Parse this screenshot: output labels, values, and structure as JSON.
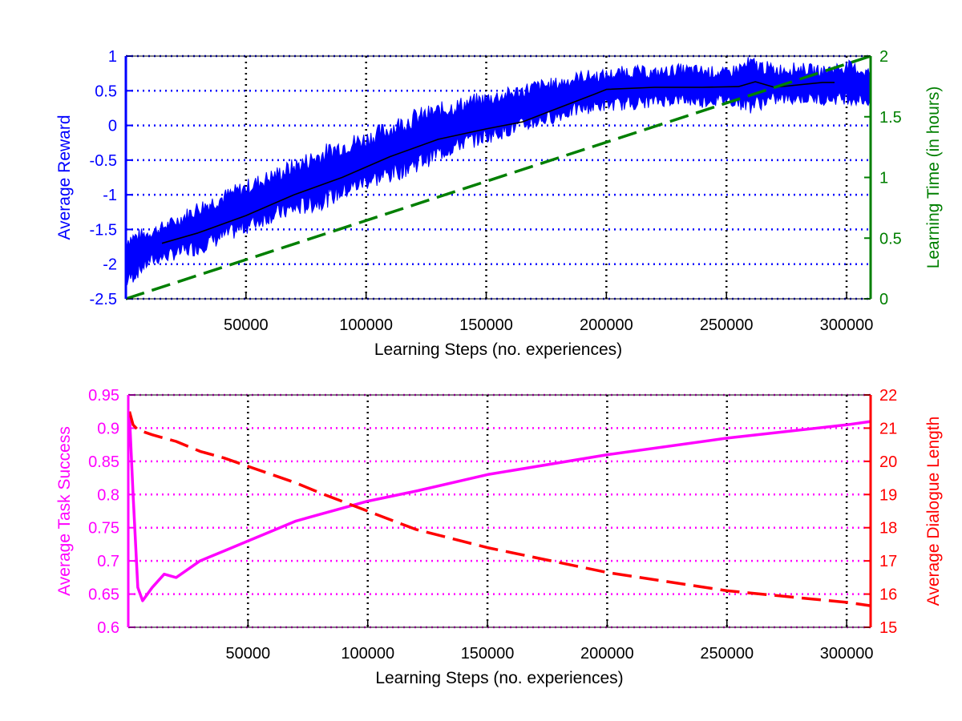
{
  "chart_data": [
    {
      "type": "line",
      "xlabel": "Learning Steps (no. experiences)",
      "ylabel_left": "Average Reward",
      "ylabel_right": "Learning Time (in hours)",
      "xlim": [
        0,
        310000
      ],
      "ylim_left": [
        -2.5,
        1
      ],
      "ylim_right": [
        0,
        2
      ],
      "x_ticks": [
        "50000",
        "100000",
        "150000",
        "200000",
        "250000",
        "300000"
      ],
      "y_ticks_left": [
        "1",
        "0.5",
        "0",
        "-0.5",
        "-1",
        "-1.5",
        "-2",
        "-2.5"
      ],
      "y_ticks_right": [
        "2",
        "1.5",
        "1",
        "0.5",
        "0"
      ],
      "grid": true,
      "colors": {
        "left_axis": "#0000ff",
        "right_axis": "#007f00",
        "mean_line": "#000000",
        "grid_x": "#000000",
        "grid_y": "#0000ff"
      },
      "series": [
        {
          "axis": "left",
          "style": "band",
          "x": [
            0,
            10000,
            20000,
            30000,
            40000,
            50000,
            60000,
            70000,
            80000,
            90000,
            100000,
            110000,
            120000,
            130000,
            140000,
            150000,
            160000,
            170000,
            180000,
            190000,
            200000,
            210000,
            220000,
            230000,
            240000,
            250000,
            260000,
            270000,
            280000,
            290000,
            300000,
            310000
          ],
          "low": [
            -2.25,
            -1.95,
            -1.85,
            -1.75,
            -1.6,
            -1.45,
            -1.3,
            -1.2,
            -1.1,
            -0.95,
            -0.8,
            -0.7,
            -0.55,
            -0.4,
            -0.25,
            -0.15,
            -0.05,
            0.05,
            0.15,
            0.25,
            0.3,
            0.32,
            0.35,
            0.38,
            0.35,
            0.38,
            0.3,
            0.38,
            0.4,
            0.38,
            0.4,
            0.35
          ],
          "high": [
            -1.65,
            -1.55,
            -1.4,
            -1.2,
            -1.05,
            -0.9,
            -0.75,
            -0.6,
            -0.45,
            -0.3,
            -0.2,
            -0.05,
            0.1,
            0.2,
            0.3,
            0.38,
            0.45,
            0.55,
            0.6,
            0.7,
            0.72,
            0.78,
            0.75,
            0.8,
            0.78,
            0.75,
            0.88,
            0.8,
            0.82,
            0.78,
            0.85,
            0.75
          ]
        },
        {
          "axis": "left",
          "style": "mean",
          "x": [
            15000,
            30000,
            50000,
            70000,
            90000,
            110000,
            130000,
            150000,
            165000,
            180000,
            195000,
            200000,
            220000,
            240000,
            255000,
            262000,
            270000,
            290000,
            295000
          ],
          "y": [
            -1.7,
            -1.55,
            -1.3,
            -1.0,
            -0.75,
            -0.45,
            -0.2,
            -0.05,
            0.05,
            0.25,
            0.45,
            0.52,
            0.55,
            0.55,
            0.56,
            0.63,
            0.55,
            0.62,
            0.62
          ]
        },
        {
          "axis": "right",
          "style": "dashed",
          "x": [
            0,
            310000
          ],
          "y": [
            0,
            2
          ]
        }
      ]
    },
    {
      "type": "line",
      "xlabel": "Learning Steps (no. experiences)",
      "ylabel_left": "Average Task Success",
      "ylabel_right": "Average Dialogue Length",
      "xlim": [
        0,
        310000
      ],
      "ylim_left": [
        0.6,
        0.95
      ],
      "ylim_right": [
        15,
        22
      ],
      "x_ticks": [
        "50000",
        "100000",
        "150000",
        "200000",
        "250000",
        "300000"
      ],
      "y_ticks_left": [
        "0.95",
        "0.9",
        "0.85",
        "0.8",
        "0.75",
        "0.7",
        "0.65",
        "0.6"
      ],
      "y_ticks_right": [
        "22",
        "21",
        "20",
        "19",
        "18",
        "17",
        "16",
        "15"
      ],
      "grid": true,
      "colors": {
        "left_axis": "#ff00ff",
        "right_axis": "#ff0000",
        "grid_x": "#000000",
        "grid_y": "#ff00ff"
      },
      "series": [
        {
          "axis": "left",
          "style": "solid",
          "x": [
            500,
            2000,
            4000,
            6000,
            10000,
            15000,
            20000,
            30000,
            40000,
            50000,
            60000,
            70000,
            80000,
            100000,
            120000,
            150000,
            200000,
            250000,
            300000,
            310000
          ],
          "y": [
            0.92,
            0.8,
            0.66,
            0.64,
            0.66,
            0.68,
            0.675,
            0.7,
            0.715,
            0.73,
            0.745,
            0.76,
            0.77,
            0.79,
            0.805,
            0.83,
            0.86,
            0.885,
            0.905,
            0.91
          ]
        },
        {
          "axis": "right",
          "style": "dashed",
          "x": [
            500,
            2000,
            4000,
            6000,
            10000,
            15000,
            20000,
            30000,
            40000,
            50000,
            60000,
            70000,
            80000,
            100000,
            120000,
            150000,
            200000,
            250000,
            300000,
            310000
          ],
          "y": [
            21.5,
            21.1,
            20.95,
            20.9,
            20.8,
            20.7,
            20.6,
            20.3,
            20.1,
            19.85,
            19.6,
            19.35,
            19.05,
            18.5,
            17.95,
            17.4,
            16.65,
            16.1,
            15.75,
            15.65
          ]
        }
      ]
    }
  ]
}
